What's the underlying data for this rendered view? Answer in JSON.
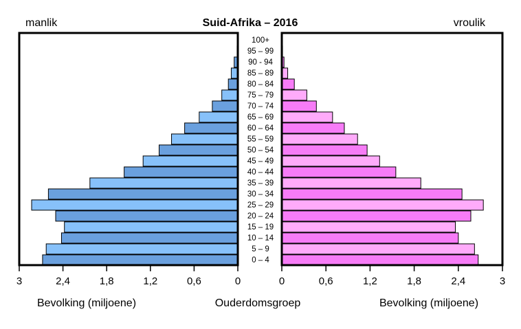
{
  "chart_data": {
    "type": "bar",
    "title": "Suid-Afrika – 2016",
    "left_label": "manlik",
    "right_label": "vroulik",
    "xlabel_left": "Bevolking (miljoene)",
    "xlabel_center": "Ouderdomsgroep",
    "xlabel_right": "Bevolking (miljoene)",
    "xlim": [
      0,
      3
    ],
    "ticks": [
      0,
      0.6,
      1.2,
      1.8,
      2.4,
      3
    ],
    "tick_labels_left": [
      "3",
      "2,4",
      "1,8",
      "1,2",
      "0,6",
      "0"
    ],
    "tick_labels_right": [
      "0",
      "0,6",
      "1,2",
      "1,8",
      "2,4",
      "3"
    ],
    "categories": [
      "0 – 4",
      "5 – 9",
      "10 – 14",
      "15 – 19",
      "20 – 24",
      "25 – 29",
      "30 – 34",
      "35 – 39",
      "40 – 44",
      "45 – 49",
      "50 – 54",
      "55 – 59",
      "60 – 64",
      "65 – 69",
      "70 – 74",
      "75 – 79",
      "80 – 84",
      "85 – 89",
      "90 - 94",
      "95 – 99",
      "100+"
    ],
    "series": [
      {
        "values": [
          2.68,
          2.63,
          2.42,
          2.38,
          2.5,
          2.83,
          2.6,
          2.03,
          1.56,
          1.3,
          1.08,
          0.91,
          0.73,
          0.53,
          0.35,
          0.22,
          0.13,
          0.09,
          0.05,
          0.01,
          0.0
        ],
        "colors": [
          "#6aa0de",
          "#87c1fa"
        ]
      },
      {
        "values": [
          2.67,
          2.62,
          2.4,
          2.36,
          2.57,
          2.74,
          2.45,
          1.89,
          1.55,
          1.33,
          1.16,
          1.03,
          0.85,
          0.69,
          0.47,
          0.34,
          0.17,
          0.08,
          0.03,
          0.01,
          0.0
        ],
        "colors": [
          "#f77cf7",
          "#ffabfa"
        ]
      }
    ]
  }
}
